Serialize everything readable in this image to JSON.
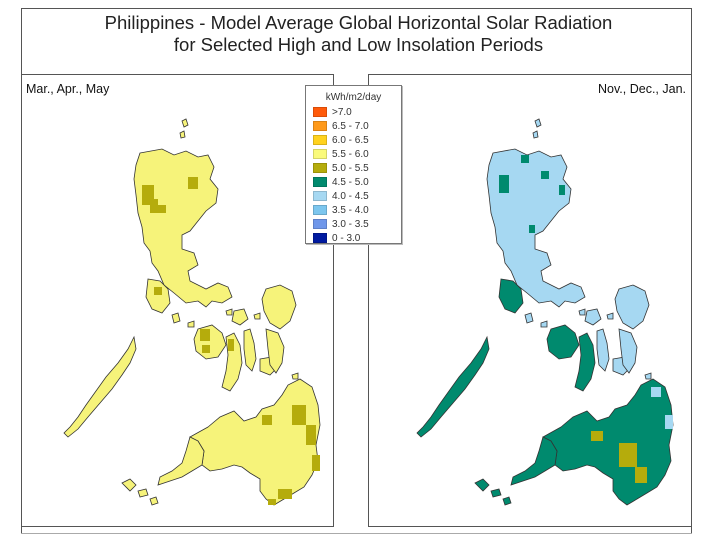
{
  "title_line1": "Philippines - Model Average Global Horizontal Solar Radiation",
  "title_line2": "for Selected High and Low Insolation Periods",
  "left_panel": {
    "label": "Mar., Apr., May"
  },
  "right_panel": {
    "label": "Nov., Dec., Jan."
  },
  "legend": {
    "title": "kWh/m2/day",
    "items": [
      {
        "label": ">7.0",
        "color": "#ff5a0a"
      },
      {
        "label": "6.5 - 7.0",
        "color": "#ff9a1a"
      },
      {
        "label": "6.0 - 6.5",
        "color": "#ffd21e"
      },
      {
        "label": "5.5 - 6.0",
        "color": "#fafa7a"
      },
      {
        "label": "5.0 - 5.5",
        "color": "#b5ac0c"
      },
      {
        "label": "4.5 - 5.0",
        "color": "#008a6e"
      },
      {
        "label": "4.0 - 4.5",
        "color": "#a6d8f2"
      },
      {
        "label": "3.5 - 4.0",
        "color": "#7cc6ee"
      },
      {
        "label": "3.0 - 3.5",
        "color": "#6f97ea"
      },
      {
        "label": "0 - 3.0",
        "color": "#001aa0"
      }
    ]
  },
  "colors": {
    "left_base": "#f6f37a",
    "left_dark": "#b5ac0c",
    "right_light": "#a6d8f2",
    "right_teal": "#008a6e",
    "right_olive": "#b5ac0c",
    "outline": "#333333"
  }
}
